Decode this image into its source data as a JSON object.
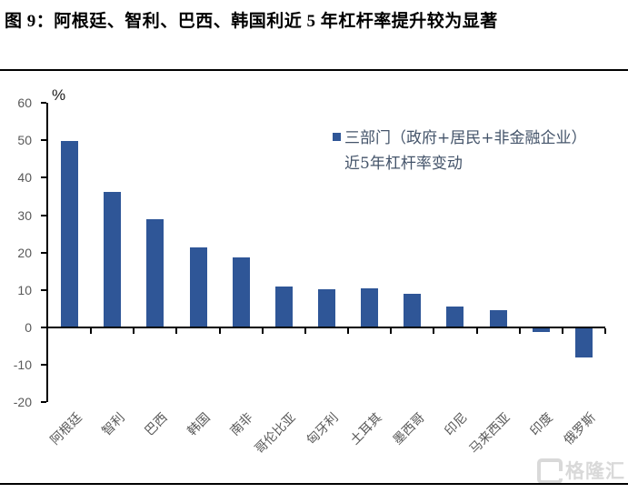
{
  "figure": {
    "title": "图 9：阿根廷、智利、巴西、韩国利近 5 年杠杆率提升较为显著"
  },
  "chart_data": {
    "type": "bar",
    "title": "",
    "unit_label": "%",
    "categories": [
      "阿根廷",
      "智利",
      "巴西",
      "韩国",
      "南非",
      "哥伦比亚",
      "匈牙利",
      "土耳其",
      "墨西哥",
      "印尼",
      "马来西亚",
      "印度",
      "俄罗斯"
    ],
    "values": [
      49.7,
      36.2,
      29.0,
      21.5,
      18.6,
      10.9,
      10.3,
      10.4,
      9.1,
      5.6,
      4.7,
      -1.1,
      -8.1
    ],
    "legend_label": "三部门（政府+居民+非金融企业）近5年杠杆率变动",
    "legend_lines": [
      "三部门（政府+居民+非金融企业）",
      "近5年杠杆率变动"
    ],
    "legend_position": "upper-right",
    "xlabel": "",
    "ylabel": "%",
    "ylim": [
      -20,
      60
    ],
    "yticks": [
      60,
      50,
      40,
      30,
      20,
      10,
      0,
      -10,
      -20
    ],
    "grid": false,
    "colors": {
      "bar": "#2F5697",
      "axis": "#000000",
      "tick_label": "#595959",
      "legend_text": "#44546A"
    }
  },
  "watermark": {
    "logo": "G",
    "text": "格隆汇"
  }
}
